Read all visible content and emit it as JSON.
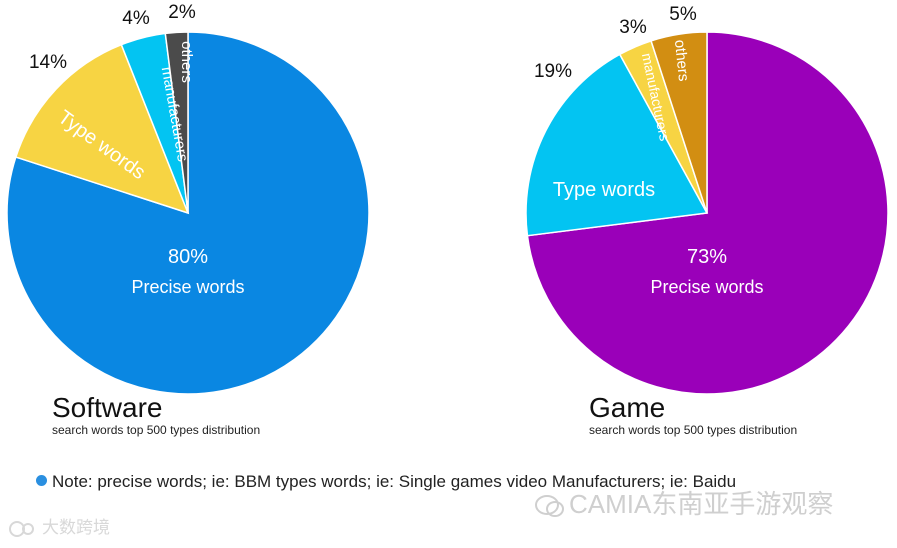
{
  "chart_data": [
    {
      "type": "pie",
      "title": "Software",
      "subtitle": "search words top 500 types distribution",
      "slices": [
        {
          "label": "Precise words",
          "value": 80,
          "display": "80%",
          "color": "#0a87e2"
        },
        {
          "label": "Type words",
          "value": 14,
          "display": "14%",
          "color": "#f7d443"
        },
        {
          "label": "manufacturers",
          "value": 4,
          "display": "4%",
          "color": "#03c4f2"
        },
        {
          "label": "others",
          "value": 2,
          "display": "2%",
          "color": "#4b4b4b"
        }
      ]
    },
    {
      "type": "pie",
      "title": "Game",
      "subtitle": "search words top 500 types distribution",
      "slices": [
        {
          "label": "Precise words",
          "value": 73,
          "display": "73%",
          "color": "#9a00b9"
        },
        {
          "label": "Type words",
          "value": 19,
          "display": "19%",
          "color": "#03c4f2"
        },
        {
          "label": "manufacturers",
          "value": 3,
          "display": "3%",
          "color": "#f7d443"
        },
        {
          "label": "others",
          "value": 5,
          "display": "5%",
          "color": "#d28e12"
        }
      ]
    }
  ],
  "note": {
    "text": "Note: precise words; ie: BBM   types words; ie: Single games video   Manufacturers; ie: Baidu",
    "dot_color": "#2a8fe0"
  },
  "watermarks": {
    "right": "CAMIA东南亚手游观察",
    "left": "大数跨境"
  }
}
